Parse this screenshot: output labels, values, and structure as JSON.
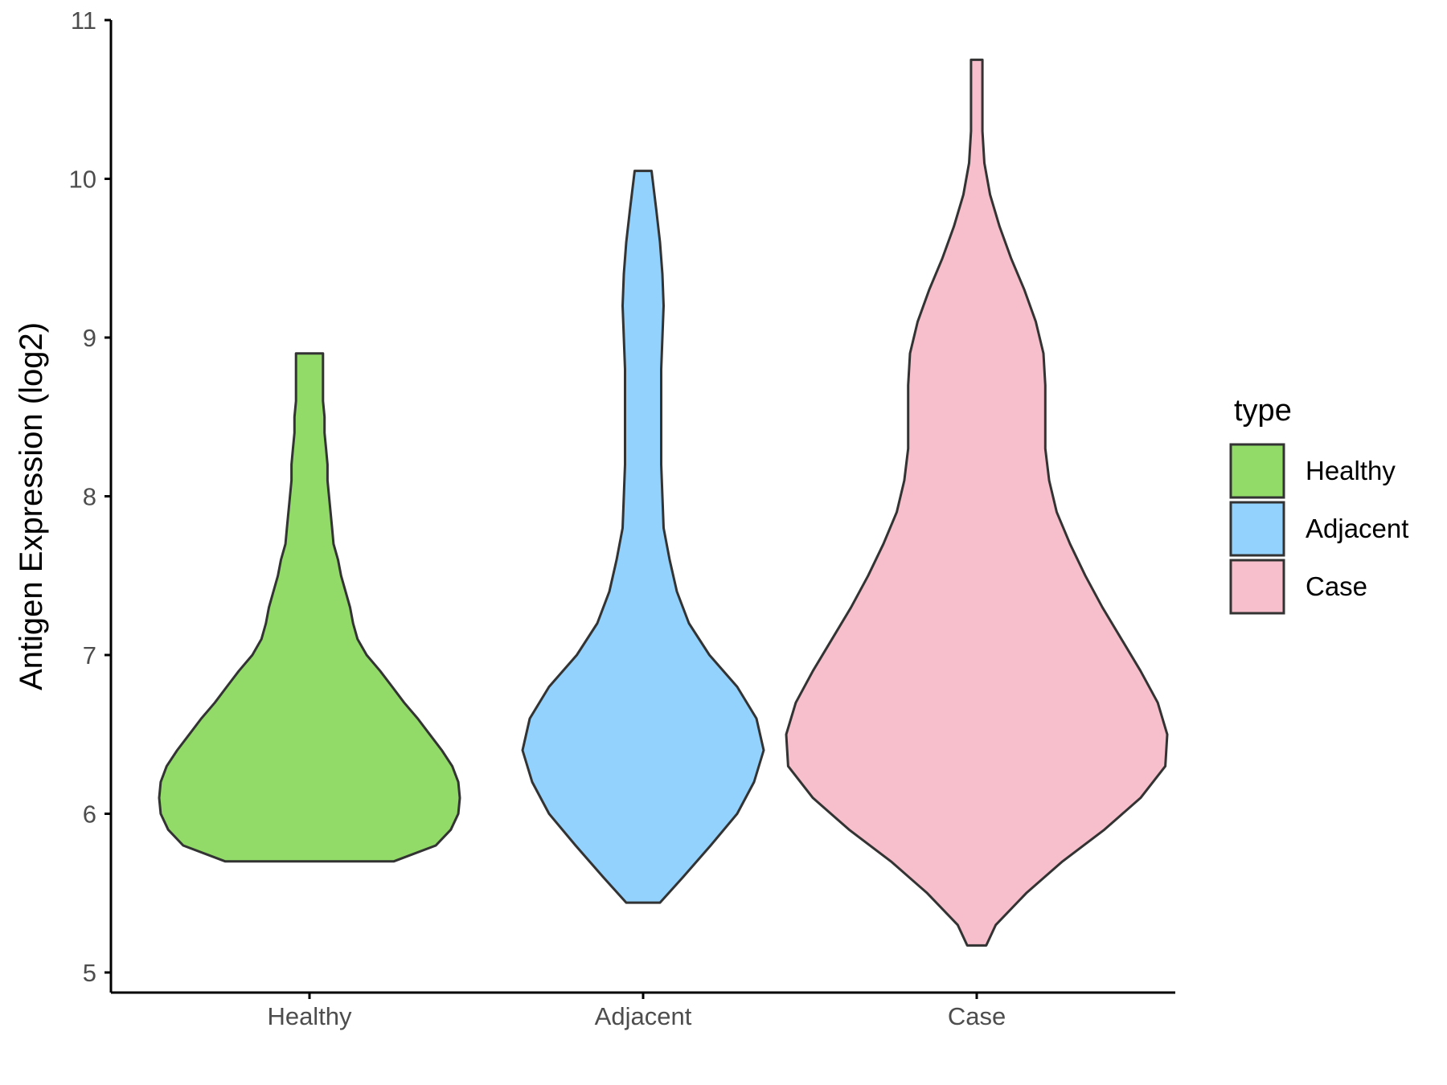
{
  "chart_data": {
    "type": "violin",
    "title": "",
    "xlabel": "",
    "ylabel": "Antigen Expression (log2)",
    "ylim": [
      5,
      11
    ],
    "yticks": [
      5,
      6,
      7,
      8,
      9,
      10,
      11
    ],
    "categories": [
      "Healthy",
      "Adjacent",
      "Case"
    ],
    "legend": {
      "title": "type",
      "position": "right",
      "entries": [
        "Healthy",
        "Adjacent",
        "Case"
      ]
    },
    "colors": {
      "Healthy": "#92DB69",
      "Adjacent": "#92D2FD",
      "Case": "#F7BFCB",
      "outline": "#333333"
    },
    "series": [
      {
        "name": "Healthy",
        "min": 5.7,
        "max": 8.9,
        "density": [
          [
            5.7,
            0.56
          ],
          [
            5.8,
            0.84
          ],
          [
            5.9,
            0.94
          ],
          [
            6.0,
            0.99
          ],
          [
            6.1,
            1.0
          ],
          [
            6.2,
            0.99
          ],
          [
            6.3,
            0.95
          ],
          [
            6.4,
            0.88
          ],
          [
            6.5,
            0.8
          ],
          [
            6.6,
            0.72
          ],
          [
            6.7,
            0.63
          ],
          [
            6.8,
            0.55
          ],
          [
            6.9,
            0.47
          ],
          [
            7.0,
            0.38
          ],
          [
            7.1,
            0.32
          ],
          [
            7.2,
            0.29
          ],
          [
            7.3,
            0.27
          ],
          [
            7.4,
            0.24
          ],
          [
            7.5,
            0.21
          ],
          [
            7.6,
            0.19
          ],
          [
            7.7,
            0.16
          ],
          [
            7.8,
            0.15
          ],
          [
            7.9,
            0.14
          ],
          [
            8.0,
            0.13
          ],
          [
            8.1,
            0.12
          ],
          [
            8.2,
            0.12
          ],
          [
            8.3,
            0.11
          ],
          [
            8.4,
            0.1
          ],
          [
            8.5,
            0.1
          ],
          [
            8.6,
            0.09
          ],
          [
            8.7,
            0.09
          ],
          [
            8.8,
            0.09
          ],
          [
            8.9,
            0.09
          ]
        ]
      },
      {
        "name": "Adjacent",
        "min": 5.44,
        "max": 10.05,
        "density": [
          [
            5.44,
            0.14
          ],
          [
            5.6,
            0.33
          ],
          [
            5.8,
            0.56
          ],
          [
            6.0,
            0.78
          ],
          [
            6.2,
            0.92
          ],
          [
            6.4,
            1.0
          ],
          [
            6.6,
            0.94
          ],
          [
            6.8,
            0.78
          ],
          [
            7.0,
            0.55
          ],
          [
            7.2,
            0.38
          ],
          [
            7.4,
            0.28
          ],
          [
            7.6,
            0.22
          ],
          [
            7.8,
            0.17
          ],
          [
            8.0,
            0.16
          ],
          [
            8.2,
            0.15
          ],
          [
            8.4,
            0.15
          ],
          [
            8.6,
            0.15
          ],
          [
            8.8,
            0.15
          ],
          [
            9.0,
            0.16
          ],
          [
            9.2,
            0.17
          ],
          [
            9.4,
            0.16
          ],
          [
            9.6,
            0.14
          ],
          [
            9.8,
            0.11
          ],
          [
            10.05,
            0.07
          ]
        ]
      },
      {
        "name": "Case",
        "min": 5.17,
        "max": 10.75,
        "density": [
          [
            5.17,
            0.05
          ],
          [
            5.3,
            0.1
          ],
          [
            5.5,
            0.26
          ],
          [
            5.7,
            0.45
          ],
          [
            5.9,
            0.67
          ],
          [
            6.1,
            0.86
          ],
          [
            6.3,
            0.99
          ],
          [
            6.5,
            1.0
          ],
          [
            6.7,
            0.95
          ],
          [
            6.9,
            0.86
          ],
          [
            7.1,
            0.76
          ],
          [
            7.3,
            0.66
          ],
          [
            7.5,
            0.57
          ],
          [
            7.7,
            0.49
          ],
          [
            7.9,
            0.42
          ],
          [
            8.1,
            0.38
          ],
          [
            8.3,
            0.36
          ],
          [
            8.5,
            0.36
          ],
          [
            8.7,
            0.36
          ],
          [
            8.9,
            0.35
          ],
          [
            9.1,
            0.31
          ],
          [
            9.3,
            0.25
          ],
          [
            9.5,
            0.18
          ],
          [
            9.7,
            0.12
          ],
          [
            9.9,
            0.07
          ],
          [
            10.1,
            0.04
          ],
          [
            10.3,
            0.03
          ],
          [
            10.5,
            0.03
          ],
          [
            10.75,
            0.03
          ]
        ]
      }
    ]
  }
}
